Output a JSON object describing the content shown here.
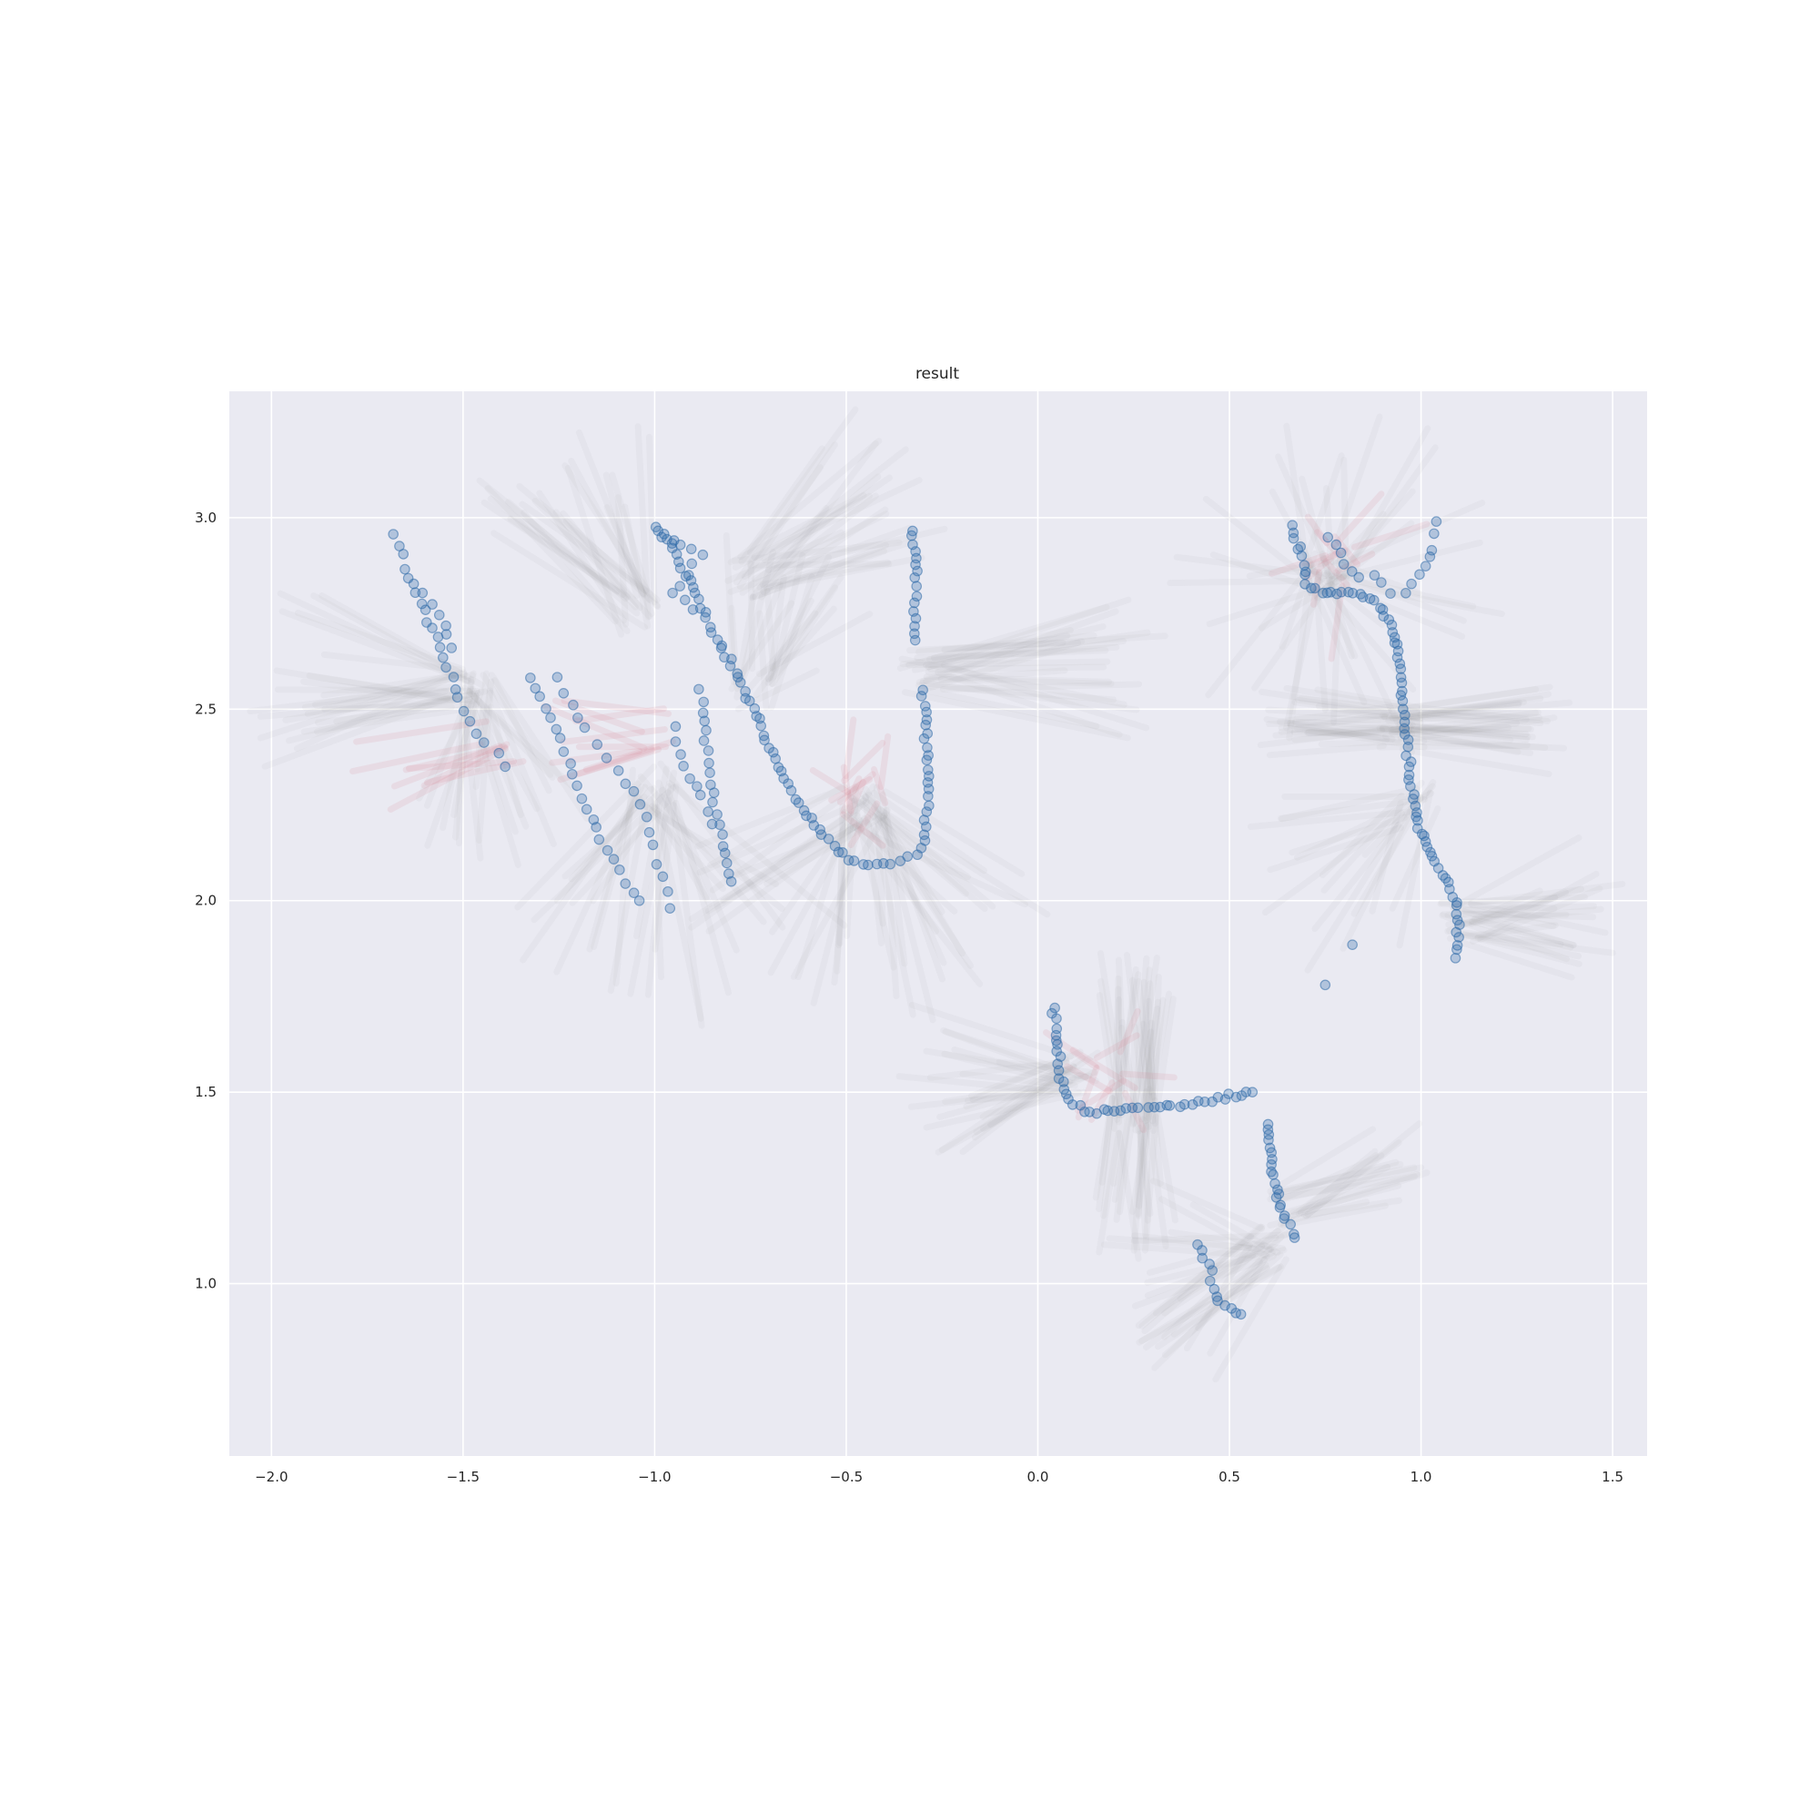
{
  "chart_data": {
    "type": "scatter",
    "title": "result",
    "xlabel": "",
    "ylabel": "",
    "xlim": [
      -2.11,
      1.59
    ],
    "ylim": [
      0.55,
      3.33
    ],
    "grid": true,
    "x_ticks": [
      -2.0,
      -1.5,
      -1.0,
      -0.5,
      0.0,
      0.5,
      1.0,
      1.5
    ],
    "x_tick_labels": [
      "−2.0",
      "−1.5",
      "−1.0",
      "−0.5",
      "0.0",
      "0.5",
      "1.0",
      "1.5"
    ],
    "y_ticks": [
      1.0,
      1.5,
      2.0,
      2.5,
      3.0
    ],
    "y_tick_labels": [
      "1.0",
      "1.5",
      "2.0",
      "2.5",
      "3.0"
    ],
    "colors": {
      "background": "#eaeaf2",
      "grid": "#ffffff",
      "points": "#2e6aa8",
      "rays_gray": "#7f7f7f",
      "rays_red": "#d9788a"
    },
    "series": [
      {
        "type": "scatter",
        "paths": [
          {
            "points": [
              [
                -1.68,
                2.96
              ],
              [
                -1.65,
                2.87
              ],
              [
                -1.62,
                2.8
              ],
              [
                -1.59,
                2.73
              ],
              [
                -1.56,
                2.66
              ],
              [
                -1.53,
                2.58
              ],
              [
                -1.5,
                2.5
              ],
              [
                -1.47,
                2.44
              ],
              [
                -1.44,
                2.41
              ],
              [
                -1.41,
                2.38
              ],
              [
                -1.39,
                2.35
              ]
            ],
            "step": 0.03
          },
          {
            "points": [
              [
                -1.6,
                2.8
              ],
              [
                -1.55,
                2.72
              ],
              [
                -1.53,
                2.66
              ]
            ],
            "step": 0.035
          },
          {
            "points": [
              [
                -1.32,
                2.58
              ],
              [
                -1.26,
                2.45
              ],
              [
                -1.2,
                2.3
              ],
              [
                -1.14,
                2.16
              ],
              [
                -1.08,
                2.05
              ],
              [
                -1.04,
                2.0
              ]
            ],
            "step": 0.03
          },
          {
            "points": [
              [
                -1.25,
                2.58
              ],
              [
                -1.18,
                2.45
              ],
              [
                -1.1,
                2.34
              ],
              [
                -1.02,
                2.22
              ],
              [
                -0.96,
                1.98
              ]
            ],
            "step": 0.04
          },
          {
            "points": [
              [
                -1.0,
                2.98
              ],
              [
                -0.96,
                2.93
              ],
              [
                -0.93,
                2.87
              ],
              [
                -0.89,
                2.8
              ],
              [
                -0.86,
                2.72
              ],
              [
                -0.83,
                2.67
              ],
              [
                -0.78,
                2.58
              ],
              [
                -0.73,
                2.47
              ],
              [
                -0.68,
                2.35
              ],
              [
                -0.62,
                2.25
              ],
              [
                -0.56,
                2.17
              ],
              [
                -0.52,
                2.13
              ],
              [
                -0.48,
                2.1
              ],
              [
                -0.42,
                2.09
              ],
              [
                -0.36,
                2.1
              ],
              [
                -0.32,
                2.12
              ],
              [
                -0.3,
                2.16
              ],
              [
                -0.29,
                2.25
              ],
              [
                -0.29,
                2.4
              ],
              [
                -0.3,
                2.55
              ]
            ],
            "step": 0.018
          },
          {
            "points": [
              [
                -0.33,
                2.97
              ],
              [
                -0.32,
                2.88
              ],
              [
                -0.32,
                2.78
              ],
              [
                -0.32,
                2.68
              ]
            ],
            "step": 0.02
          },
          {
            "points": [
              [
                -0.88,
                2.55
              ],
              [
                -0.87,
                2.44
              ],
              [
                -0.86,
                2.36
              ],
              [
                -0.85,
                2.28
              ],
              [
                -0.83,
                2.2
              ],
              [
                -0.82,
                2.12
              ],
              [
                -0.8,
                2.05
              ]
            ],
            "step": 0.025
          },
          {
            "points": [
              [
                -0.95,
                2.45
              ],
              [
                -0.92,
                2.35
              ],
              [
                -0.88,
                2.27
              ],
              [
                -0.85,
                2.2
              ]
            ],
            "step": 0.035
          },
          {
            "points": [
              [
                -0.98,
                2.95
              ],
              [
                -0.93,
                2.93
              ],
              [
                -0.88,
                2.9
              ],
              [
                -0.95,
                2.8
              ],
              [
                -0.9,
                2.76
              ]
            ],
            "step": 0.03
          },
          {
            "points": [
              [
                0.04,
                1.72
              ],
              [
                0.05,
                1.62
              ],
              [
                0.06,
                1.54
              ],
              [
                0.08,
                1.48
              ],
              [
                0.12,
                1.45
              ],
              [
                0.2,
                1.45
              ],
              [
                0.3,
                1.46
              ],
              [
                0.4,
                1.47
              ],
              [
                0.5,
                1.49
              ],
              [
                0.56,
                1.5
              ]
            ],
            "step": 0.016
          },
          {
            "points": [
              [
                0.6,
                1.42
              ],
              [
                0.61,
                1.34
              ],
              [
                0.62,
                1.25
              ],
              [
                0.64,
                1.18
              ],
              [
                0.67,
                1.12
              ]
            ],
            "step": 0.015
          },
          {
            "points": [
              [
                0.42,
                1.1
              ],
              [
                0.45,
                1.03
              ],
              [
                0.47,
                0.95
              ],
              [
                0.5,
                0.93
              ],
              [
                0.53,
                0.92
              ]
            ],
            "step": 0.02
          },
          {
            "points": [
              [
                0.66,
                2.98
              ],
              [
                0.68,
                2.93
              ],
              [
                0.69,
                2.88
              ],
              [
                0.7,
                2.83
              ],
              [
                0.74,
                2.8
              ],
              [
                0.78,
                2.8
              ],
              [
                0.84,
                2.8
              ],
              [
                0.88,
                2.78
              ],
              [
                0.92,
                2.72
              ],
              [
                0.94,
                2.65
              ],
              [
                0.95,
                2.55
              ],
              [
                0.96,
                2.45
              ],
              [
                0.97,
                2.35
              ],
              [
                0.98,
                2.25
              ],
              [
                1.0,
                2.18
              ],
              [
                1.04,
                2.1
              ],
              [
                1.08,
                2.03
              ],
              [
                1.1,
                1.95
              ],
              [
                1.09,
                1.85
              ]
            ],
            "step": 0.016
          },
          {
            "points": [
              [
                0.76,
                2.95
              ],
              [
                0.8,
                2.88
              ],
              [
                0.84,
                2.84
              ],
              [
                0.88,
                2.85
              ],
              [
                0.92,
                2.8
              ],
              [
                0.96,
                2.8
              ],
              [
                1.0,
                2.85
              ],
              [
                1.03,
                2.92
              ],
              [
                1.04,
                2.99
              ]
            ],
            "step": 0.03
          },
          {
            "points": [
              [
                0.82,
                1.89
              ],
              [
                0.75,
                1.78
              ]
            ],
            "step": 0.1
          }
        ]
      },
      {
        "type": "rays",
        "clusters": [
          {
            "c": [
              -1.5,
              2.55
            ],
            "n": 26,
            "len": [
              0.35,
              0.55
            ],
            "a": [
              150,
              205
            ],
            "red": false
          },
          {
            "c": [
              -1.45,
              2.55
            ],
            "n": 22,
            "len": [
              0.25,
              0.45
            ],
            "a": [
              240,
              320
            ],
            "red": false
          },
          {
            "c": [
              -1.4,
              2.42
            ],
            "n": 8,
            "len": [
              0.2,
              0.35
            ],
            "a": [
              180,
              210
            ],
            "red": true
          },
          {
            "c": [
              -1.05,
              2.75
            ],
            "n": 26,
            "len": [
              0.3,
              0.5
            ],
            "a": [
              90,
              160
            ],
            "red": false
          },
          {
            "c": [
              -1.0,
              2.3
            ],
            "n": 30,
            "len": [
              0.3,
              0.6
            ],
            "a": [
              220,
              330
            ],
            "red": false
          },
          {
            "c": [
              -1.0,
              2.45
            ],
            "n": 10,
            "len": [
              0.2,
              0.3
            ],
            "a": [
              150,
              200
            ],
            "red": true
          },
          {
            "c": [
              -0.75,
              2.85
            ],
            "n": 26,
            "len": [
              0.3,
              0.5
            ],
            "a": [
              0,
              60
            ],
            "red": false
          },
          {
            "c": [
              -0.75,
              2.55
            ],
            "n": 20,
            "len": [
              0.2,
              0.4
            ],
            "a": [
              20,
              100
            ],
            "red": false
          },
          {
            "c": [
              -0.45,
              2.25
            ],
            "n": 44,
            "len": [
              0.35,
              0.55
            ],
            "a": [
              200,
              340
            ],
            "red": false
          },
          {
            "c": [
              -0.45,
              2.28
            ],
            "n": 12,
            "len": [
              0.08,
              0.16
            ],
            "a": [
              0,
              360
            ],
            "red": true
          },
          {
            "c": [
              -0.3,
              2.6
            ],
            "n": 28,
            "len": [
              0.35,
              0.6
            ],
            "a": [
              340,
              380
            ],
            "red": false
          },
          {
            "c": [
              0.1,
              1.55
            ],
            "n": 26,
            "len": [
              0.25,
              0.45
            ],
            "a": [
              160,
              220
            ],
            "red": false
          },
          {
            "c": [
              0.25,
              1.45
            ],
            "n": 30,
            "len": [
              0.25,
              0.4
            ],
            "a": [
              80,
              100
            ],
            "red": false
          },
          {
            "c": [
              0.25,
              1.45
            ],
            "n": 22,
            "len": [
              0.22,
              0.35
            ],
            "a": [
              260,
              280
            ],
            "red": false
          },
          {
            "c": [
              0.2,
              1.55
            ],
            "n": 10,
            "len": [
              0.1,
              0.2
            ],
            "a": [
              0,
              360
            ],
            "red": true
          },
          {
            "c": [
              0.6,
              1.1
            ],
            "n": 30,
            "len": [
              0.25,
              0.45
            ],
            "a": [
              150,
              240
            ],
            "red": false
          },
          {
            "c": [
              0.65,
              1.2
            ],
            "n": 18,
            "len": [
              0.25,
              0.4
            ],
            "a": [
              5,
              40
            ],
            "red": false
          },
          {
            "c": [
              0.75,
              2.85
            ],
            "n": 40,
            "len": [
              0.25,
              0.45
            ],
            "a": [
              0,
              360
            ],
            "red": false
          },
          {
            "c": [
              0.78,
              2.88
            ],
            "n": 12,
            "len": [
              0.08,
              0.2
            ],
            "a": [
              0,
              360
            ],
            "red": true
          },
          {
            "c": [
              0.95,
              2.45
            ],
            "n": 30,
            "len": [
              0.3,
              0.4
            ],
            "a": [
              -10,
              10
            ],
            "red": false
          },
          {
            "c": [
              0.95,
              2.45
            ],
            "n": 26,
            "len": [
              0.25,
              0.35
            ],
            "a": [
              170,
              190
            ],
            "red": false
          },
          {
            "c": [
              1.1,
              1.95
            ],
            "n": 26,
            "len": [
              0.25,
              0.4
            ],
            "a": [
              -20,
              30
            ],
            "red": false
          },
          {
            "c": [
              1.0,
              2.25
            ],
            "n": 18,
            "len": [
              0.25,
              0.45
            ],
            "a": [
              180,
              260
            ],
            "red": false
          }
        ]
      }
    ]
  }
}
